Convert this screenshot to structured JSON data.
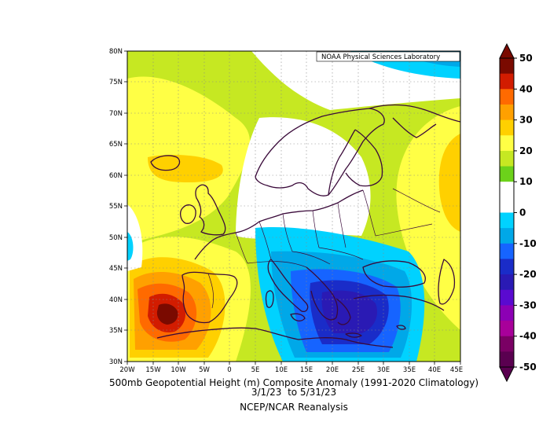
{
  "credit": "NOAA Physical Sciences Laboratory",
  "title_line1": "500mb Geopotential Height (m) Composite Anomaly (1991-2020 Climatology)",
  "title_line2": "3/1/23  to 5/31/23",
  "title_line3": "NCEP/NCAR Reanalysis",
  "lat_labels": [
    "80N",
    "75N",
    "70N",
    "65N",
    "60N",
    "55N",
    "50N",
    "45N",
    "40N",
    "35N",
    "30N"
  ],
  "lon_labels": [
    "20W",
    "15W",
    "10W",
    "5W",
    "0",
    "5E",
    "10E",
    "15E",
    "20E",
    "25E",
    "30E",
    "35E",
    "40E",
    "45E"
  ],
  "colorbar": {
    "labels": [
      "50",
      "40",
      "30",
      "20",
      "10",
      "0",
      "-10",
      "-20",
      "-30",
      "-40",
      "-50"
    ],
    "colors": [
      "#7a0a00",
      "#d21c00",
      "#ff6a00",
      "#ffa000",
      "#ffd000",
      "#ffff45",
      "#c6e822",
      "#6cd21a",
      "#ffffff",
      "#ffffff",
      "#00d2ff",
      "#00a8e8",
      "#1664ff",
      "#1a2cc8",
      "#2a1ab4",
      "#5a0ad0",
      "#8c00b4",
      "#a8009a",
      "#7a0064",
      "#5a0050"
    ]
  },
  "chart_data": {
    "type": "map",
    "field": "500mb geopotential height anomaly",
    "units": "m",
    "period": "3/1/23 to 5/31/23",
    "lon_range": [
      -20,
      45
    ],
    "lat_range": [
      30,
      80
    ],
    "colorbar_range": [
      -50,
      50
    ],
    "contour_interval": 5
  }
}
